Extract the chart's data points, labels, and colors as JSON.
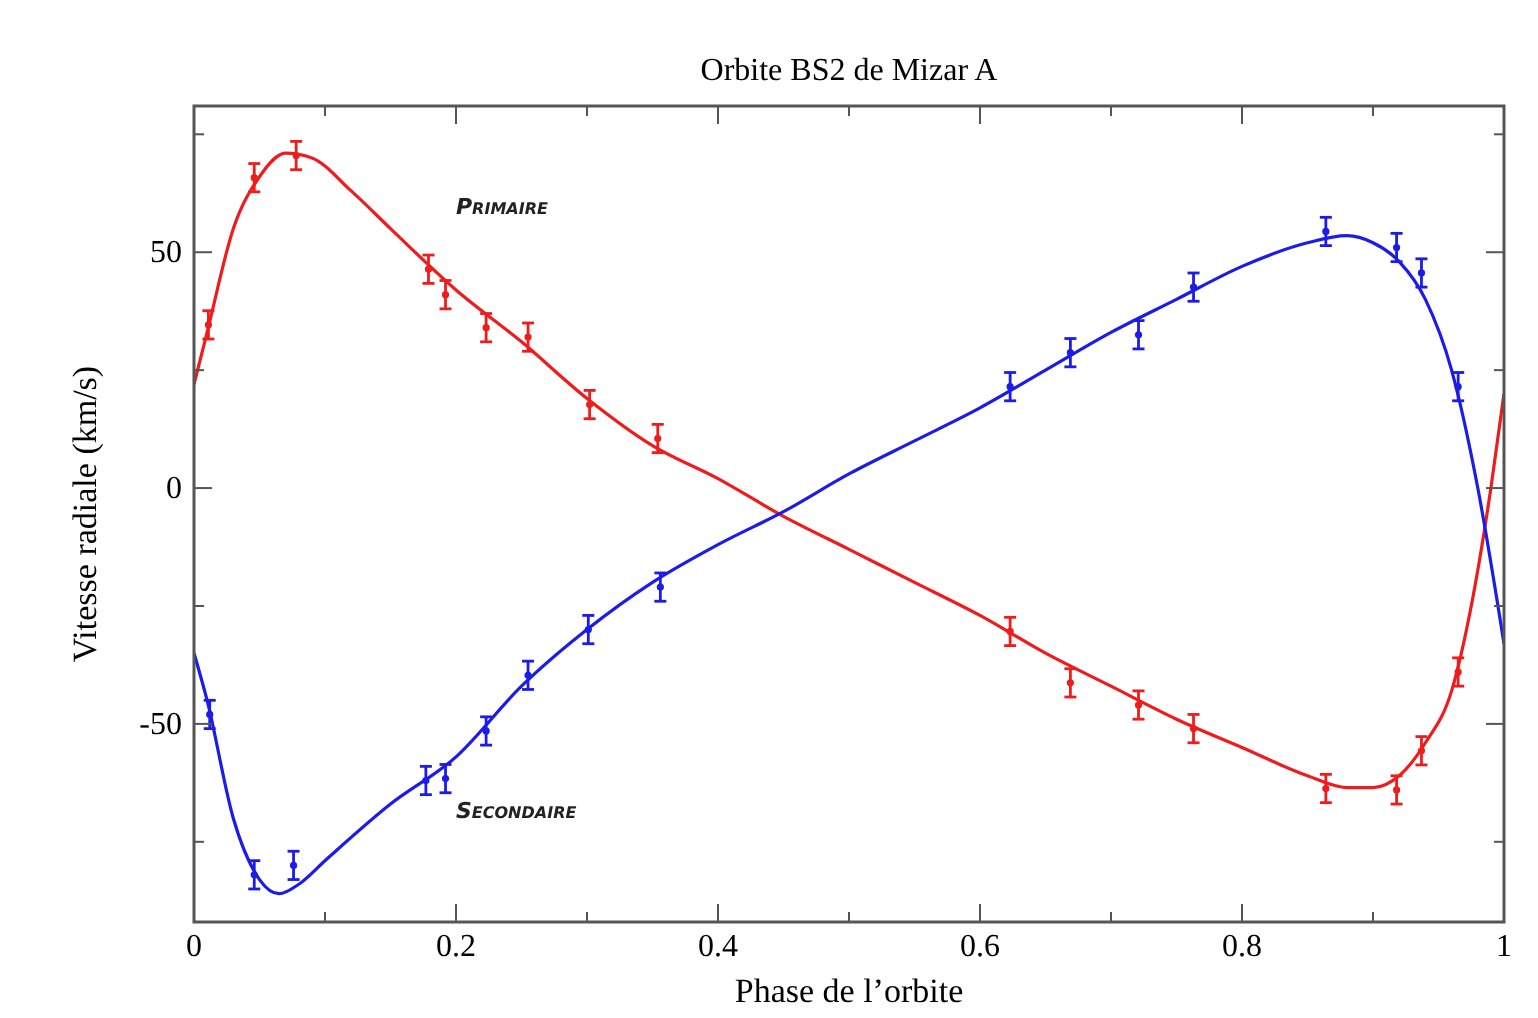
{
  "chart_data": {
    "type": "line",
    "title": "Orbite BS2 de Mizar A",
    "xlabel": "Phase de l’orbite",
    "ylabel": "Vitesse radiale (km/s)",
    "xlim": [
      0,
      1
    ],
    "ylim": [
      -92,
      81
    ],
    "xticks": [
      0,
      {
        "value": 0.1,
        "label": null
      },
      0.2,
      {
        "value": 0.3,
        "label": null
      },
      0.4,
      {
        "value": 0.5,
        "label": null
      },
      0.6,
      {
        "value": 0.7,
        "label": null
      },
      0.8,
      {
        "value": 0.9,
        "label": null
      },
      1
    ],
    "yticks": [
      {
        "value": -75,
        "label": null
      },
      -50,
      {
        "value": -25,
        "label": null
      },
      0,
      {
        "value": 25,
        "label": null
      },
      50,
      {
        "value": 75,
        "label": null
      }
    ],
    "grid": false,
    "legend": false,
    "marker": "none",
    "line_style": "solid",
    "series": [
      {
        "name": "Primaire",
        "color": "#ee1c1c",
        "x": [
          0,
          0.01,
          0.03,
          0.05,
          0.07,
          0.09,
          0.12,
          0.15,
          0.2,
          0.25,
          0.3,
          0.35,
          0.4,
          0.45,
          0.5,
          0.55,
          0.6,
          0.65,
          0.7,
          0.75,
          0.8,
          0.85,
          0.88,
          0.9,
          0.92,
          0.94,
          0.96,
          0.975,
          0.99,
          1
        ],
        "values": [
          22,
          33,
          55,
          66,
          71,
          70,
          63,
          55,
          42,
          31,
          19,
          9,
          2,
          -6,
          -13,
          -20,
          -27,
          -35,
          -42,
          -49,
          -55,
          -61,
          -63.5,
          -63.5,
          -61,
          -54,
          -43,
          -25,
          0,
          20
        ]
      },
      {
        "name": "Secondaire",
        "color": "#1c1ce8",
        "x": [
          0,
          0.01,
          0.03,
          0.05,
          0.065,
          0.08,
          0.1,
          0.15,
          0.2,
          0.25,
          0.3,
          0.35,
          0.4,
          0.45,
          0.5,
          0.55,
          0.6,
          0.65,
          0.7,
          0.75,
          0.8,
          0.85,
          0.88,
          0.9,
          0.92,
          0.94,
          0.96,
          0.98,
          1
        ],
        "values": [
          -35,
          -45,
          -70,
          -83,
          -86,
          -84,
          -79,
          -67,
          -57,
          -42,
          -30,
          -20,
          -12,
          -5,
          3,
          10,
          17,
          25,
          33,
          40,
          47,
          52,
          53.5,
          52,
          48,
          40,
          25,
          0,
          -33
        ]
      },
      {
        "type": "scatter",
        "color": "#ee1c1c",
        "marker": "circle",
        "x": [
          0.011,
          0.046,
          0.078,
          0.179,
          0.192,
          0.223,
          0.255,
          0.302,
          0.354,
          0.623,
          0.669,
          0.721,
          0.763,
          0.864,
          0.918,
          0.937,
          0.965
        ],
        "values": [
          34.6,
          65.8,
          70.5,
          46.4,
          41,
          34,
          32,
          17.7,
          10.5,
          -30.4,
          -41.3,
          -46,
          -51,
          -63.7,
          -64,
          -55.7,
          -39
        ],
        "errors": [
          3,
          3,
          3,
          3,
          3,
          3,
          3,
          3,
          3,
          3,
          3,
          3,
          3,
          3,
          3,
          3,
          3
        ]
      },
      {
        "type": "scatter",
        "color": "#1c1ce8",
        "marker": "circle",
        "x": [
          0.012,
          0.046,
          0.076,
          0.177,
          0.192,
          0.223,
          0.255,
          0.301,
          0.356,
          0.623,
          0.669,
          0.721,
          0.763,
          0.864,
          0.918,
          0.937,
          0.965
        ],
        "values": [
          -48,
          -82,
          -80,
          -62,
          -61.6,
          -51.5,
          -39.7,
          -30,
          -21,
          21.5,
          28.7,
          32.5,
          42.6,
          54.4,
          51,
          45.6,
          21.5
        ],
        "errors": [
          3,
          3,
          3,
          3,
          3,
          3,
          3,
          3,
          3,
          3,
          3,
          3,
          3,
          3,
          3,
          3,
          3
        ]
      }
    ]
  }
}
